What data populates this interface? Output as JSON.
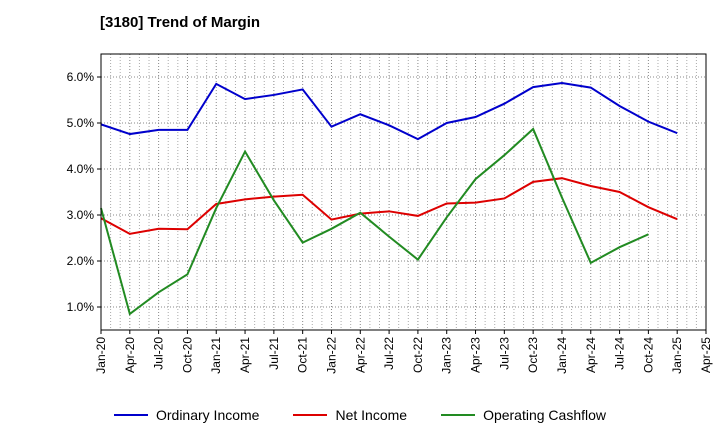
{
  "title": "[3180]  Trend of Margin",
  "chart_data": {
    "type": "line",
    "title": "[3180]  Trend of Margin",
    "xlabel": "",
    "ylabel": "",
    "x": [
      "Jan-20",
      "Apr-20",
      "Jul-20",
      "Oct-20",
      "Jan-21",
      "Apr-21",
      "Jul-21",
      "Oct-21",
      "Jan-22",
      "Apr-22",
      "Jul-22",
      "Oct-22",
      "Jan-23",
      "Apr-23",
      "Jul-23",
      "Oct-23",
      "Jan-24",
      "Apr-24",
      "Jul-24",
      "Oct-24",
      "Jan-25",
      "Apr-25"
    ],
    "ylim": [
      0.5,
      6.5
    ],
    "yticks": [
      1.0,
      2.0,
      3.0,
      4.0,
      5.0,
      6.0
    ],
    "ytick_labels": [
      "1.0%",
      "2.0%",
      "3.0%",
      "4.0%",
      "5.0%",
      "6.0%"
    ],
    "grid": true,
    "legend_position": "bottom",
    "series": [
      {
        "name": "Ordinary Income",
        "color": "#0000cc",
        "values": [
          4.97,
          4.76,
          4.85,
          4.85,
          5.85,
          5.52,
          5.61,
          5.73,
          4.92,
          5.19,
          4.95,
          4.65,
          5.0,
          5.13,
          5.42,
          5.78,
          5.87,
          5.77,
          5.37,
          5.03,
          4.78,
          null
        ]
      },
      {
        "name": "Net Income",
        "color": "#dd0000",
        "values": [
          2.93,
          2.59,
          2.7,
          2.69,
          3.24,
          3.34,
          3.4,
          3.44,
          2.9,
          3.03,
          3.08,
          2.98,
          3.25,
          3.27,
          3.36,
          3.72,
          3.8,
          3.63,
          3.5,
          3.17,
          2.91,
          null
        ]
      },
      {
        "name": "Operating Cashflow",
        "color": "#228b22",
        "values": [
          3.15,
          0.85,
          1.32,
          1.71,
          3.15,
          4.38,
          3.32,
          2.4,
          2.7,
          3.05,
          2.53,
          2.03,
          2.95,
          3.78,
          4.3,
          4.87,
          3.38,
          1.96,
          2.3,
          2.58,
          null,
          null
        ]
      }
    ]
  }
}
